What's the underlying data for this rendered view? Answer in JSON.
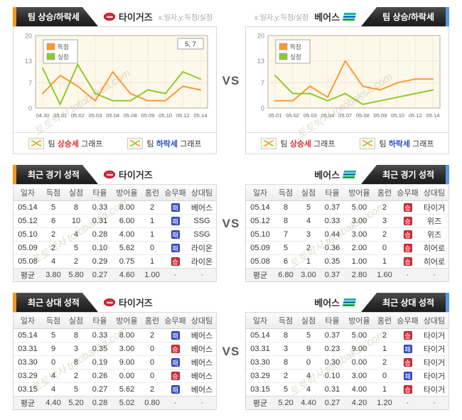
{
  "page": {
    "vs": "VS",
    "watermark_ko": "토토박사",
    "watermark_en": "totobaksa.com"
  },
  "teams": {
    "left": "타이거즈",
    "right": "베어스"
  },
  "labels": {
    "trend_title": "팀 상승/하락세",
    "axis_hint": "x:일자,y:득점/실점",
    "btn_team": "팀",
    "btn_rise": "상승세",
    "btn_fall": "하락세",
    "btn_graph": "그래프",
    "win": "승",
    "loss": "패",
    "dot": "·"
  },
  "chart_data": [
    {
      "type": "line",
      "team": "타이거즈",
      "title": "팀 상승/하락세",
      "xlabel": "일자",
      "ylabel": "득점/실점",
      "categories": [
        "04.30",
        "05.01",
        "05.02",
        "05.03",
        "05.04",
        "05.08",
        "05.09",
        "05.10",
        "05.12",
        "05.14"
      ],
      "yticks": [
        0,
        7,
        13,
        20
      ],
      "ylim": [
        0,
        20
      ],
      "grid": true,
      "legend_position": "top-left",
      "series": [
        {
          "name": "득점",
          "color": "#ff9933",
          "values": [
            4,
            9,
            6,
            2,
            10,
            4,
            2,
            2,
            6,
            5
          ]
        },
        {
          "name": "실점",
          "color": "#8ccb2e",
          "values": [
            11,
            1,
            12,
            4,
            2,
            2,
            5,
            4,
            10,
            8
          ]
        }
      ],
      "annotation": "5, 7"
    },
    {
      "type": "line",
      "team": "베어스",
      "title": "팀 상승/하락세",
      "xlabel": "일자",
      "ylabel": "득점/실점",
      "categories": [
        "05.01",
        "05.02",
        "05.03",
        "05.04",
        "05.07",
        "05.08",
        "05.09",
        "05.10",
        "05.12",
        "05.14"
      ],
      "yticks": [
        0,
        7,
        13,
        20
      ],
      "ylim": [
        0,
        20
      ],
      "grid": true,
      "legend_position": "top-left",
      "series": [
        {
          "name": "득점",
          "color": "#ff9933",
          "values": [
            2,
            2,
            6,
            3,
            13,
            6,
            5,
            7,
            8,
            8
          ]
        },
        {
          "name": "실점",
          "color": "#8ccb2e",
          "values": [
            9,
            4,
            4,
            2,
            4,
            1,
            2,
            3,
            4,
            5
          ]
        }
      ],
      "annotation": ""
    }
  ],
  "table_columns": [
    "일자",
    "득점",
    "실점",
    "타율",
    "방어율",
    "홈런",
    "승무패",
    "상대팀"
  ],
  "tables": {
    "recent": {
      "title": "최근 경기 성적",
      "left": {
        "team": "타이거즈",
        "rows": [
          [
            "05.14",
            "5",
            "8",
            "0.33",
            "8.00",
            "2",
            "패",
            "베어스"
          ],
          [
            "05.12",
            "6",
            "10",
            "0.31",
            "6.00",
            "1",
            "패",
            "SSG"
          ],
          [
            "05.10",
            "2",
            "4",
            "0.28",
            "4.00",
            "1",
            "패",
            "SSG"
          ],
          [
            "05.09",
            "2",
            "5",
            "0.10",
            "5.62",
            "0",
            "패",
            "라이온"
          ],
          [
            "05.08",
            "4",
            "2",
            "0.29",
            "0.75",
            "1",
            "승",
            "라이온"
          ]
        ],
        "avg": [
          "평균",
          "3.80",
          "5.80",
          "0.27",
          "4.60",
          "1.00",
          "·",
          "·"
        ]
      },
      "right": {
        "team": "베어스",
        "rows": [
          [
            "05.14",
            "8",
            "5",
            "0.37",
            "5.00",
            "2",
            "승",
            "타이거"
          ],
          [
            "05.12",
            "8",
            "4",
            "0.33",
            "3.00",
            "3",
            "승",
            "위즈"
          ],
          [
            "05.10",
            "7",
            "3",
            "0.44",
            "3.00",
            "2",
            "승",
            "위즈"
          ],
          [
            "05.09",
            "5",
            "2",
            "0.36",
            "2.00",
            "0",
            "승",
            "히어로"
          ],
          [
            "05.08",
            "6",
            "1",
            "0.35",
            "1.00",
            "1",
            "승",
            "히어로"
          ]
        ],
        "avg": [
          "평균",
          "6.80",
          "3.00",
          "0.37",
          "2.80",
          "1.60",
          "·",
          "·"
        ]
      }
    },
    "h2h": {
      "title": "최근 상대 성적",
      "left": {
        "team": "타이거즈",
        "rows": [
          [
            "05.14",
            "5",
            "8",
            "0.33",
            "8.00",
            "2",
            "패",
            "베어스"
          ],
          [
            "03.31",
            "9",
            "3",
            "0.35",
            "3.00",
            "0",
            "승",
            "베어스"
          ],
          [
            "03.30",
            "0",
            "8",
            "0.19",
            "9.00",
            "0",
            "패",
            "베어스"
          ],
          [
            "03.29",
            "4",
            "2",
            "0.26",
            "0.00",
            "0",
            "승",
            "베어스"
          ],
          [
            "03.15",
            "4",
            "5",
            "0.27",
            "5.62",
            "2",
            "패",
            "베어스"
          ]
        ],
        "avg": [
          "평균",
          "4.40",
          "5.20",
          "0.28",
          "5.02",
          "0.80",
          "·",
          "·"
        ]
      },
      "right": {
        "team": "베어스",
        "rows": [
          [
            "05.14",
            "8",
            "5",
            "0.37",
            "5.00",
            "2",
            "승",
            "타이거"
          ],
          [
            "03.31",
            "3",
            "9",
            "0.23",
            "9.00",
            "1",
            "패",
            "타이거"
          ],
          [
            "03.30",
            "8",
            "0",
            "0.30",
            "0.00",
            "2",
            "승",
            "타이거"
          ],
          [
            "03.29",
            "2",
            "4",
            "0.10",
            "3.00",
            "0",
            "패",
            "타이거"
          ],
          [
            "03.15",
            "5",
            "4",
            "0.31",
            "4.00",
            "1",
            "승",
            "타이거"
          ]
        ],
        "avg": [
          "평균",
          "5.20",
          "4.40",
          "0.27",
          "4.20",
          "1.20",
          "·",
          "·"
        ]
      }
    }
  },
  "colors": {
    "accent_left": "#f7941d",
    "accent_right": "#4f9be8",
    "win_bg": "#d6323c",
    "loss_bg": "#3c55c8",
    "score_line": "#ff9933",
    "concede_line": "#8ccb2e",
    "chart_bg": "#fdf8ea"
  }
}
